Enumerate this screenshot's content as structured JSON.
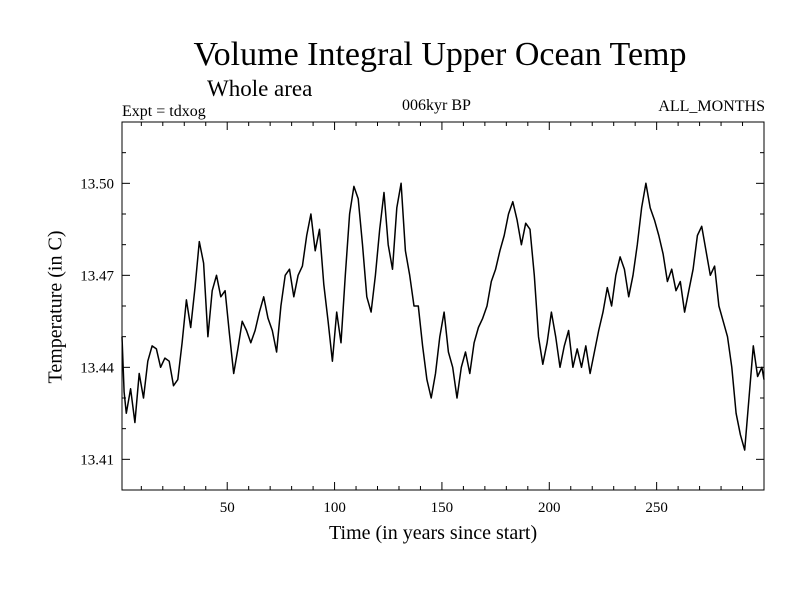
{
  "chart_data": {
    "type": "line",
    "title": "Volume Integral Upper Ocean Temp",
    "subtitle": "Whole area",
    "annotations": {
      "left": "Expt = tdxog",
      "center": "006kyr BP",
      "right": "ALL_MONTHS"
    },
    "xlabel": "Time (in years since start)",
    "ylabel": "Temperature (in C)",
    "xlim": [
      1,
      300
    ],
    "ylim": [
      13.4,
      13.52
    ],
    "xticks": [
      50,
      100,
      150,
      200,
      250
    ],
    "yticks": [
      13.41,
      13.44,
      13.47,
      13.5
    ],
    "ytick_labels": [
      "13.41",
      "13.44",
      "13.47",
      "13.50"
    ],
    "grid": false,
    "series": [
      {
        "values": [
          [
            1,
            13.45
          ],
          [
            2,
            13.432
          ],
          [
            3,
            13.425
          ],
          [
            5,
            13.433
          ],
          [
            7,
            13.422
          ],
          [
            9,
            13.438
          ],
          [
            11,
            13.43
          ],
          [
            13,
            13.442
          ],
          [
            15,
            13.447
          ],
          [
            17,
            13.446
          ],
          [
            19,
            13.44
          ],
          [
            21,
            13.443
          ],
          [
            23,
            13.442
          ],
          [
            25,
            13.434
          ],
          [
            27,
            13.436
          ],
          [
            29,
            13.448
          ],
          [
            31,
            13.462
          ],
          [
            33,
            13.453
          ],
          [
            35,
            13.466
          ],
          [
            37,
            13.481
          ],
          [
            39,
            13.474
          ],
          [
            41,
            13.45
          ],
          [
            43,
            13.465
          ],
          [
            45,
            13.47
          ],
          [
            47,
            13.463
          ],
          [
            49,
            13.465
          ],
          [
            51,
            13.451
          ],
          [
            53,
            13.438
          ],
          [
            55,
            13.446
          ],
          [
            57,
            13.455
          ],
          [
            59,
            13.452
          ],
          [
            61,
            13.448
          ],
          [
            63,
            13.452
          ],
          [
            65,
            13.458
          ],
          [
            67,
            13.463
          ],
          [
            69,
            13.456
          ],
          [
            71,
            13.452
          ],
          [
            73,
            13.445
          ],
          [
            75,
            13.46
          ],
          [
            77,
            13.47
          ],
          [
            79,
            13.472
          ],
          [
            81,
            13.463
          ],
          [
            83,
            13.47
          ],
          [
            85,
            13.473
          ],
          [
            87,
            13.483
          ],
          [
            89,
            13.49
          ],
          [
            91,
            13.478
          ],
          [
            93,
            13.485
          ],
          [
            95,
            13.467
          ],
          [
            97,
            13.455
          ],
          [
            99,
            13.442
          ],
          [
            101,
            13.458
          ],
          [
            103,
            13.448
          ],
          [
            105,
            13.47
          ],
          [
            107,
            13.49
          ],
          [
            109,
            13.499
          ],
          [
            111,
            13.495
          ],
          [
            113,
            13.48
          ],
          [
            115,
            13.463
          ],
          [
            117,
            13.458
          ],
          [
            119,
            13.47
          ],
          [
            121,
            13.485
          ],
          [
            123,
            13.497
          ],
          [
            125,
            13.48
          ],
          [
            127,
            13.472
          ],
          [
            129,
            13.492
          ],
          [
            131,
            13.5
          ],
          [
            133,
            13.478
          ],
          [
            135,
            13.47
          ],
          [
            137,
            13.46
          ],
          [
            139,
            13.46
          ],
          [
            141,
            13.447
          ],
          [
            143,
            13.436
          ],
          [
            145,
            13.43
          ],
          [
            147,
            13.438
          ],
          [
            149,
            13.45
          ],
          [
            151,
            13.458
          ],
          [
            153,
            13.445
          ],
          [
            155,
            13.44
          ],
          [
            157,
            13.43
          ],
          [
            159,
            13.44
          ],
          [
            161,
            13.445
          ],
          [
            163,
            13.438
          ],
          [
            165,
            13.448
          ],
          [
            167,
            13.453
          ],
          [
            169,
            13.456
          ],
          [
            171,
            13.46
          ],
          [
            173,
            13.468
          ],
          [
            175,
            13.472
          ],
          [
            177,
            13.478
          ],
          [
            179,
            13.483
          ],
          [
            181,
            13.49
          ],
          [
            183,
            13.494
          ],
          [
            185,
            13.488
          ],
          [
            187,
            13.48
          ],
          [
            189,
            13.487
          ],
          [
            191,
            13.485
          ],
          [
            193,
            13.47
          ],
          [
            195,
            13.45
          ],
          [
            197,
            13.441
          ],
          [
            199,
            13.448
          ],
          [
            201,
            13.458
          ],
          [
            203,
            13.45
          ],
          [
            205,
            13.44
          ],
          [
            207,
            13.447
          ],
          [
            209,
            13.452
          ],
          [
            211,
            13.44
          ],
          [
            213,
            13.446
          ],
          [
            215,
            13.44
          ],
          [
            217,
            13.447
          ],
          [
            219,
            13.438
          ],
          [
            221,
            13.445
          ],
          [
            223,
            13.452
          ],
          [
            225,
            13.458
          ],
          [
            227,
            13.466
          ],
          [
            229,
            13.46
          ],
          [
            231,
            13.47
          ],
          [
            233,
            13.476
          ],
          [
            235,
            13.472
          ],
          [
            237,
            13.463
          ],
          [
            239,
            13.47
          ],
          [
            241,
            13.48
          ],
          [
            243,
            13.492
          ],
          [
            245,
            13.5
          ],
          [
            247,
            13.492
          ],
          [
            249,
            13.488
          ],
          [
            251,
            13.483
          ],
          [
            253,
            13.477
          ],
          [
            255,
            13.468
          ],
          [
            257,
            13.472
          ],
          [
            259,
            13.465
          ],
          [
            261,
            13.468
          ],
          [
            263,
            13.458
          ],
          [
            265,
            13.465
          ],
          [
            267,
            13.472
          ],
          [
            269,
            13.483
          ],
          [
            271,
            13.486
          ],
          [
            273,
            13.478
          ],
          [
            275,
            13.47
          ],
          [
            277,
            13.473
          ],
          [
            279,
            13.46
          ],
          [
            281,
            13.455
          ],
          [
            283,
            13.45
          ],
          [
            285,
            13.44
          ],
          [
            287,
            13.425
          ],
          [
            289,
            13.418
          ],
          [
            291,
            13.413
          ],
          [
            293,
            13.43
          ],
          [
            295,
            13.447
          ],
          [
            297,
            13.437
          ],
          [
            299,
            13.44
          ],
          [
            300,
            13.436
          ]
        ]
      }
    ]
  }
}
